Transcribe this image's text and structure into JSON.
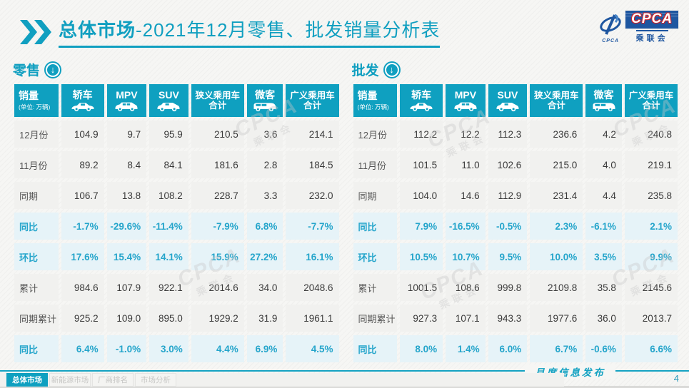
{
  "page": {
    "title_prefix": "总体市场",
    "title_rest": "-2021年12月零售、批发销量分析表"
  },
  "logo": {
    "box_text": "CPCA",
    "box_sub": "乘联会",
    "emblem_text": "CPCA"
  },
  "columns": [
    {
      "label": "销量",
      "sub": "(单位: 万辆)"
    },
    {
      "label": "轿车",
      "icon": "sedan-icon"
    },
    {
      "label": "MPV",
      "icon": "mpv-icon"
    },
    {
      "label": "SUV",
      "icon": "suv-icon"
    },
    {
      "label": "狭义乘用车",
      "label2": "合计"
    },
    {
      "label": "微客",
      "icon": "microvan-icon"
    },
    {
      "label": "广义乘用车",
      "label2": "合计"
    }
  ],
  "tables": [
    {
      "name": "零售",
      "rows": [
        {
          "label": "12月份",
          "type": "num",
          "values": [
            "104.9",
            "9.7",
            "95.9",
            "210.5",
            "3.6",
            "214.1"
          ]
        },
        {
          "label": "11月份",
          "type": "num",
          "values": [
            "89.2",
            "8.4",
            "84.1",
            "181.6",
            "2.8",
            "184.5"
          ]
        },
        {
          "label": "同期",
          "type": "num",
          "values": [
            "106.7",
            "13.8",
            "108.2",
            "228.7",
            "3.3",
            "232.0"
          ]
        },
        {
          "label": "同比",
          "type": "pct",
          "values": [
            "-1.7%",
            "-29.6%",
            "-11.4%",
            "-7.9%",
            "6.8%",
            "-7.7%"
          ]
        },
        {
          "label": "环比",
          "type": "pct",
          "values": [
            "17.6%",
            "15.4%",
            "14.1%",
            "15.9%",
            "27.2%",
            "16.1%"
          ]
        },
        {
          "label": "累计",
          "type": "num",
          "values": [
            "984.6",
            "107.9",
            "922.1",
            "2014.6",
            "34.0",
            "2048.6"
          ]
        },
        {
          "label": "同期累计",
          "type": "num",
          "values": [
            "925.2",
            "109.0",
            "895.0",
            "1929.2",
            "31.9",
            "1961.1"
          ]
        },
        {
          "label": "同比",
          "type": "pct",
          "values": [
            "6.4%",
            "-1.0%",
            "3.0%",
            "4.4%",
            "6.9%",
            "4.5%"
          ]
        }
      ]
    },
    {
      "name": "批发",
      "rows": [
        {
          "label": "12月份",
          "type": "num",
          "values": [
            "112.2",
            "12.2",
            "112.3",
            "236.6",
            "4.2",
            "240.8"
          ]
        },
        {
          "label": "11月份",
          "type": "num",
          "values": [
            "101.5",
            "11.0",
            "102.6",
            "215.0",
            "4.0",
            "219.1"
          ]
        },
        {
          "label": "同期",
          "type": "num",
          "values": [
            "104.0",
            "14.6",
            "112.9",
            "231.4",
            "4.4",
            "235.8"
          ]
        },
        {
          "label": "同比",
          "type": "pct",
          "values": [
            "7.9%",
            "-16.5%",
            "-0.5%",
            "2.3%",
            "-6.1%",
            "2.1%"
          ]
        },
        {
          "label": "环比",
          "type": "pct",
          "values": [
            "10.5%",
            "10.7%",
            "9.5%",
            "10.0%",
            "3.5%",
            "9.9%"
          ]
        },
        {
          "label": "累计",
          "type": "num",
          "values": [
            "1001.5",
            "108.6",
            "999.8",
            "2109.8",
            "35.8",
            "2145.6"
          ]
        },
        {
          "label": "同期累计",
          "type": "num",
          "values": [
            "927.3",
            "107.1",
            "943.3",
            "1977.6",
            "36.0",
            "2013.7"
          ]
        },
        {
          "label": "同比",
          "type": "pct",
          "values": [
            "8.0%",
            "1.4%",
            "6.0%",
            "6.7%",
            "-0.6%",
            "6.6%"
          ]
        }
      ]
    }
  ],
  "tabs": [
    {
      "label": "总体市场",
      "active": true
    },
    {
      "label": "新能源市场",
      "active": false
    },
    {
      "label": "厂商排名",
      "active": false
    },
    {
      "label": "市场分析",
      "active": false
    }
  ],
  "footer": {
    "caption": "月度信息发布",
    "page": "4"
  },
  "watermark": {
    "text": "CPCA",
    "sub": "乘联会"
  },
  "colors": {
    "accent": "#0fa0c0",
    "percent_text": "#25a5cb",
    "row_gray": "#f1f1ef",
    "row_blue": "#e6f3f8",
    "logo_blue": "#1e56a0",
    "logo_red": "#cc2229"
  }
}
